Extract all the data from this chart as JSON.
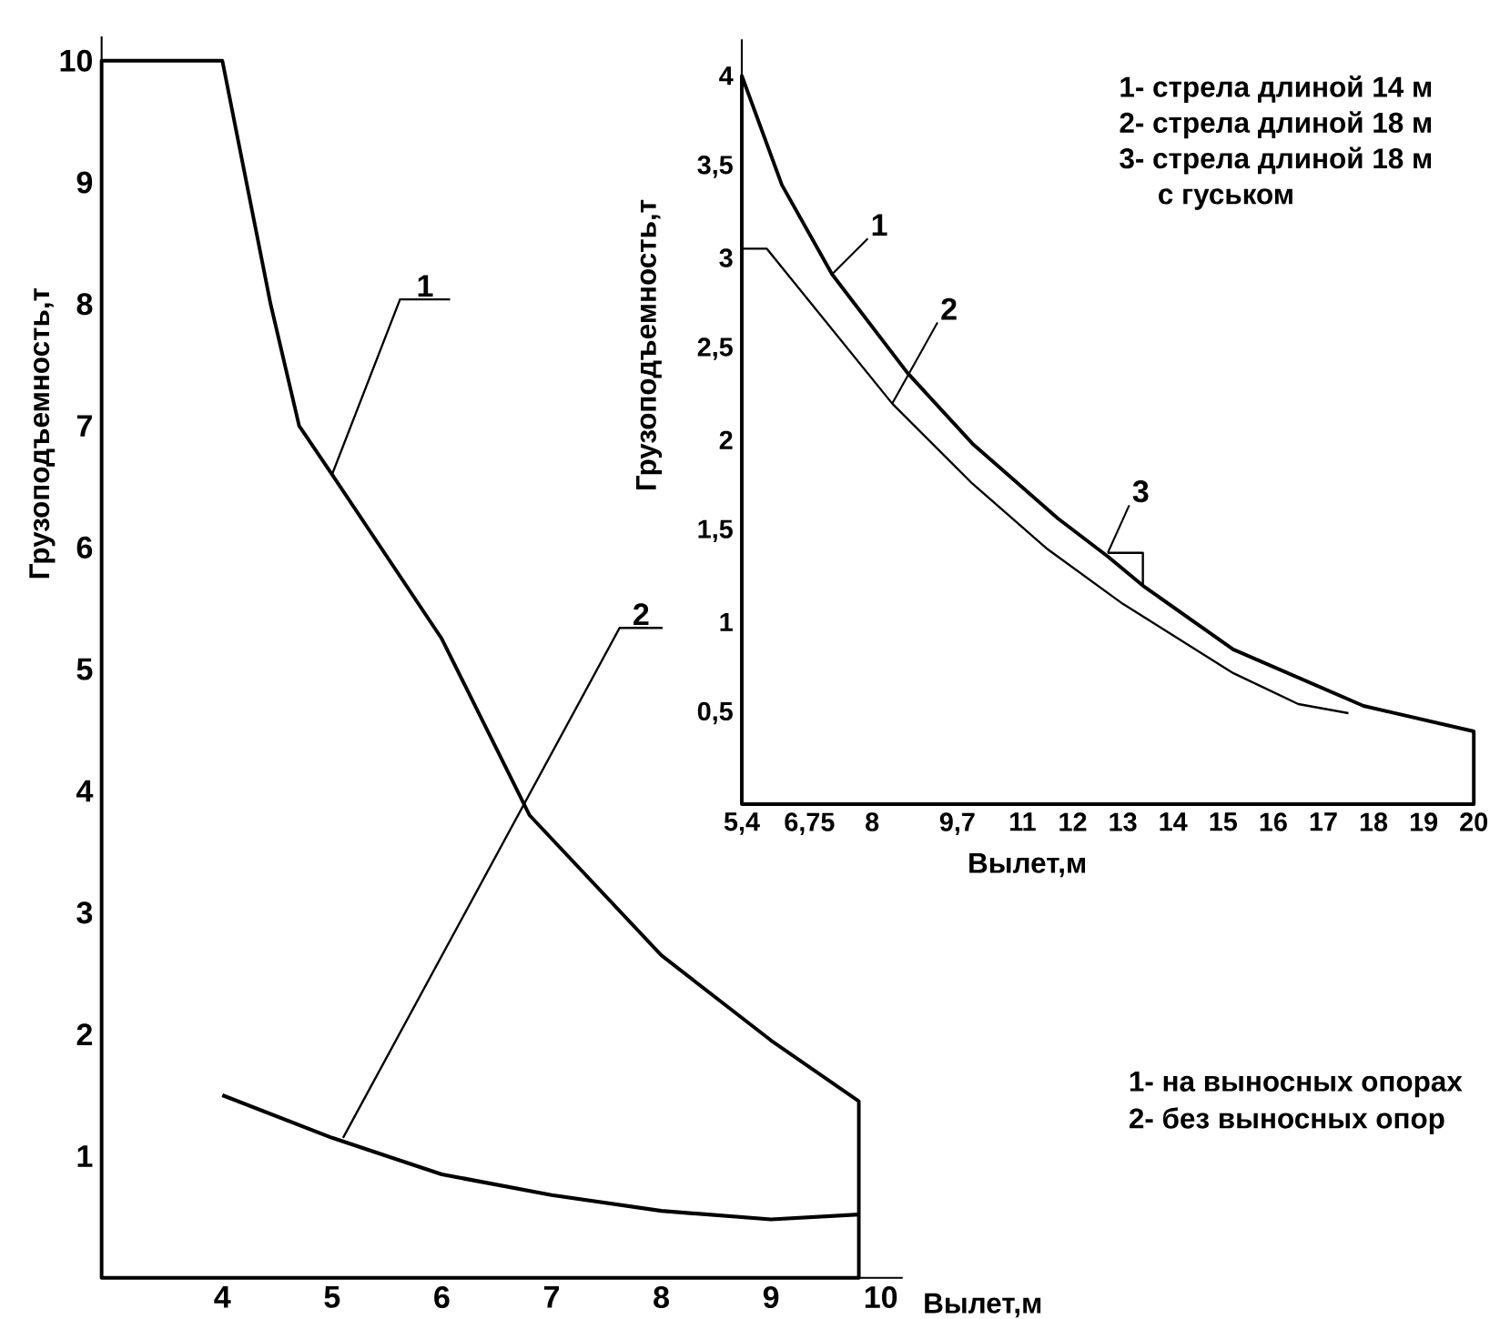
{
  "chart_data": [
    {
      "type": "line",
      "xlabel": "Вылет,м",
      "ylabel": "Грузоподъемность,т",
      "xlim": [
        2.9,
        10.2
      ],
      "ylim": [
        0,
        10.2
      ],
      "xticks": [
        4,
        5,
        6,
        7,
        8,
        9,
        10
      ],
      "yticks": [
        1,
        2,
        3,
        4,
        5,
        6,
        7,
        8,
        9,
        10
      ],
      "series": [
        {
          "type": "area",
          "color": "#000000",
          "x": [
            2.9,
            4,
            4.44,
            4.7,
            5.0,
            6,
            6.8,
            8,
            9,
            9.8
          ],
          "values": [
            10,
            10,
            8,
            7,
            6.6,
            5.25,
            3.8,
            2.65,
            1.95,
            1.45
          ]
        },
        {
          "type": "line",
          "color": "#000000",
          "x": [
            4,
            5,
            6,
            7,
            8,
            9,
            9.8
          ],
          "values": [
            1.5,
            1.15,
            0.85,
            0.68,
            0.55,
            0.48,
            0.52
          ]
        }
      ],
      "annotations": [
        {
          "text": "1",
          "x": 5.0,
          "y": 6.6
        },
        {
          "text": "2",
          "x": 5.1,
          "y": 1.15
        },
        "1- на выносных опорах",
        "2- без выносных опор"
      ]
    },
    {
      "type": "line",
      "xlabel": "Вылет,м",
      "ylabel": "Грузоподъемность,т",
      "xlim": [
        5.4,
        20
      ],
      "ylim": [
        0,
        4.2
      ],
      "xticks": [
        {
          "value": 5.4,
          "label": "5,4"
        },
        {
          "value": 6.75,
          "label": "6,75"
        },
        8,
        {
          "value": 9.7,
          "label": "9,7"
        },
        11,
        12,
        13,
        14,
        15,
        16,
        17,
        18,
        19,
        20
      ],
      "yticks": [
        {
          "value": 0.5,
          "label": "0,5"
        },
        1,
        {
          "value": 1.5,
          "label": "1,5"
        },
        2,
        {
          "value": 2.5,
          "label": "2,5"
        },
        3,
        {
          "value": 3.5,
          "label": "3,5"
        },
        4
      ],
      "series": [
        {
          "type": "area",
          "color": "#000000",
          "x": [
            5.4,
            6.2,
            7.2,
            8.7,
            10,
            11.7,
            12.7,
            13.4,
            15.2,
            17.8,
            20
          ],
          "values": [
            4.0,
            3.4,
            2.91,
            2.37,
            1.98,
            1.57,
            1.36,
            1.2,
            0.85,
            0.54,
            0.4
          ]
        },
        {
          "type": "line",
          "color": "#000000",
          "x": [
            5.4,
            5.9,
            8.4,
            10,
            11.5,
            13,
            15.2,
            16.5,
            17.5
          ],
          "values": [
            3.05,
            3.05,
            2.2,
            1.76,
            1.4,
            1.1,
            0.72,
            0.55,
            0.5
          ]
        },
        {
          "type": "line",
          "color": "#000000",
          "x": [
            12.7,
            13.4,
            13.4
          ],
          "values": [
            1.38,
            1.38,
            1.2
          ]
        }
      ],
      "annotations": [
        {
          "text": "1",
          "x": 7.2,
          "y": 2.91
        },
        {
          "text": "2",
          "x": 8.4,
          "y": 2.2
        },
        {
          "text": "3",
          "x": 12.7,
          "y": 1.38
        },
        "1- стрела длиной 14 м",
        "2- стрела длиной 18 м",
        "3- стрела длиной 18 м с гуськом"
      ]
    }
  ]
}
